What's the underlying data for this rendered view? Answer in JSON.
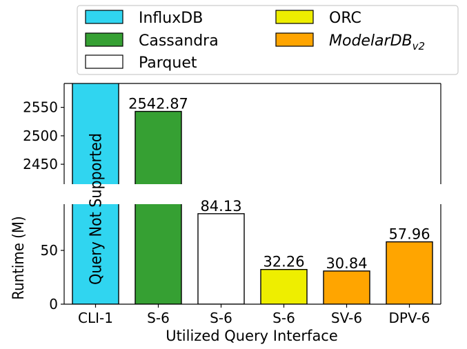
{
  "chart_data": {
    "type": "bar",
    "categories": [
      "CLI-1",
      "S-6",
      "S-6",
      "S-6",
      "SV-6",
      "DPV-6"
    ],
    "series": [
      {
        "name": "InfluxDB",
        "color": "#30d5f0",
        "category_index": 0,
        "value": null,
        "annotation": "Query Not Supported"
      },
      {
        "name": "Cassandra",
        "color": "#36a033",
        "category_index": 1,
        "value": 2542.87
      },
      {
        "name": "Parquet",
        "color": "#ffffff",
        "category_index": 2,
        "value": 84.13
      },
      {
        "name": "ORC",
        "color": "#eeee00",
        "category_index": 3,
        "value": 32.26
      },
      {
        "name": "ModelarDB",
        "name_subscript": "v2",
        "color": "#ffa500",
        "category_index": 4,
        "value": 30.84
      },
      {
        "name": "ModelarDB",
        "name_subscript": "v2",
        "color": "#ffa500",
        "category_index": 5,
        "value": 57.96
      }
    ],
    "data_labels": [
      "",
      "2542.87",
      "84.13",
      "32.26",
      "30.84",
      "57.96"
    ],
    "xlabel": "Utilized Query Interface",
    "ylabel": "Runtime (M)",
    "broken_axis": true,
    "upper_ylim": [
      2415,
      2592
    ],
    "upper_yticks": [
      2450,
      2500,
      2550
    ],
    "lower_ylim": [
      0,
      93
    ],
    "lower_yticks": [
      0,
      50
    ],
    "legend": {
      "placement": "top",
      "columns": 2,
      "entries": [
        {
          "label": "InfluxDB",
          "color": "#30d5f0"
        },
        {
          "label": "Cassandra",
          "color": "#36a033"
        },
        {
          "label": "Parquet",
          "color": "#ffffff"
        },
        {
          "label": "ORC",
          "color": "#eeee00"
        },
        {
          "label": "ModelarDB",
          "subscript": "v2",
          "italic": true,
          "color": "#ffa500"
        }
      ]
    },
    "annotation": "Query Not Supported",
    "grid": false
  }
}
